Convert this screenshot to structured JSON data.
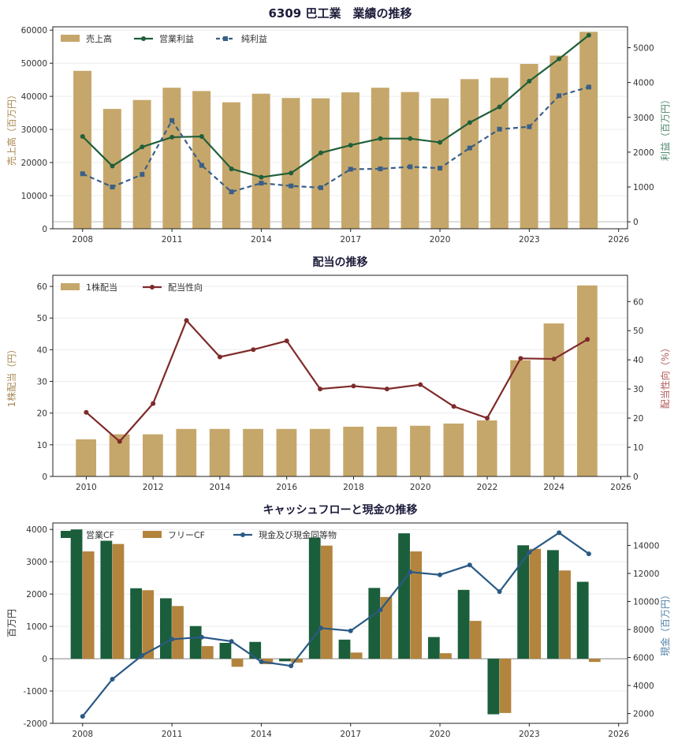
{
  "colors": {
    "bar_gold": "#c6a76b",
    "line_green": "#1f5f3a",
    "line_blue": "#3a5f86",
    "line_red": "#7f2a2a",
    "bar_dark_green": "#1b5e3b",
    "bar_brown": "#b3843e",
    "cash_blue": "#2a5a85",
    "axis_gold_text": "#a88a55",
    "axis_green_text": "#4f8a6f",
    "axis_red_text": "#b05858",
    "axis_blue_text": "#4f7fa8"
  },
  "chart_data": [
    {
      "type": "bar",
      "title": "6309 巴工業　業績の推移",
      "x": [
        2008,
        2009,
        2010,
        2011,
        2012,
        2013,
        2014,
        2015,
        2016,
        2017,
        2018,
        2019,
        2020,
        2021,
        2022,
        2023,
        2024,
        2025
      ],
      "series": [
        {
          "name": "売上高",
          "type": "bar",
          "axis": "left",
          "values": [
            47700,
            36200,
            38900,
            42600,
            41600,
            38200,
            40800,
            39500,
            39400,
            41200,
            42600,
            41300,
            39400,
            45200,
            45600,
            49800,
            52300,
            59500
          ]
        },
        {
          "name": "営業利益",
          "type": "line",
          "axis": "right",
          "values": [
            2450,
            1600,
            2150,
            2430,
            2450,
            1520,
            1280,
            1400,
            1980,
            2200,
            2390,
            2390,
            2280,
            2850,
            3300,
            4040,
            4680,
            5360
          ]
        },
        {
          "name": "純利益",
          "type": "line",
          "axis": "right",
          "values": [
            1380,
            1000,
            1360,
            2910,
            1620,
            860,
            1110,
            1030,
            980,
            1510,
            1520,
            1580,
            1540,
            2120,
            2660,
            2730,
            3620,
            3870
          ]
        }
      ],
      "xlim": [
        2007,
        2026.3
      ],
      "xticks": [
        2008,
        2011,
        2014,
        2017,
        2020,
        2023,
        2026
      ],
      "ylim": [
        0,
        61000
      ],
      "yticks": [
        0,
        10000,
        20000,
        30000,
        40000,
        50000,
        60000
      ],
      "y2lim": [
        -200,
        5600
      ],
      "y2ticks": [
        0,
        1000,
        2000,
        3000,
        4000,
        5000
      ],
      "ylabel": "売上高（百万円）",
      "y2label": "利益（百万円）",
      "legend": "top-left",
      "grid": true
    },
    {
      "type": "bar",
      "title": "配当の推移",
      "x": [
        2010,
        2011,
        2012,
        2013,
        2014,
        2015,
        2016,
        2017,
        2018,
        2019,
        2020,
        2021,
        2022,
        2023,
        2024,
        2025
      ],
      "series": [
        {
          "name": "1株配当",
          "type": "bar",
          "axis": "left",
          "values": [
            11.7,
            13.3,
            13.3,
            15,
            15,
            15,
            15,
            15,
            15.7,
            15.7,
            16,
            16.7,
            17.7,
            36.7,
            48.3,
            60.3
          ]
        },
        {
          "name": "配当性向",
          "type": "line",
          "axis": "right",
          "values": [
            22,
            12,
            25,
            53.5,
            41,
            43.5,
            46.5,
            30,
            31,
            30,
            31.5,
            24,
            20,
            40.5,
            40.3,
            47
          ]
        }
      ],
      "xlim": [
        2009,
        2026.2
      ],
      "xticks": [
        2010,
        2012,
        2014,
        2016,
        2018,
        2020,
        2022,
        2024,
        2026
      ],
      "ylim": [
        0,
        63.5
      ],
      "yticks": [
        0,
        10,
        20,
        30,
        40,
        50,
        60
      ],
      "y2lim": [
        0,
        69
      ],
      "y2ticks": [
        0,
        10,
        20,
        30,
        40,
        50,
        60
      ],
      "ylabel": "1株配当（円）",
      "y2label": "配当性向（%）",
      "legend": "top-left",
      "grid": true
    },
    {
      "type": "bar",
      "title": "キャッシュフローと現金の推移",
      "x": [
        2008,
        2009,
        2010,
        2011,
        2012,
        2013,
        2014,
        2015,
        2016,
        2017,
        2018,
        2019,
        2020,
        2021,
        2022,
        2023,
        2024,
        2025
      ],
      "series": [
        {
          "name": "営業CF",
          "type": "bar",
          "axis": "left",
          "values": [
            4000,
            3650,
            2180,
            1870,
            1010,
            490,
            520,
            -80,
            3750,
            590,
            2190,
            3880,
            670,
            2130,
            -1720,
            3510,
            3360,
            2380
          ]
        },
        {
          "name": "フリーCF",
          "type": "bar",
          "axis": "left",
          "values": [
            3320,
            3550,
            2120,
            1630,
            390,
            -250,
            -170,
            -120,
            3500,
            190,
            1910,
            3320,
            170,
            1170,
            -1680,
            3400,
            2730,
            -100
          ]
        },
        {
          "name": "現金及び現金同等物",
          "type": "line",
          "axis": "right",
          "values": [
            1800,
            4450,
            6150,
            7300,
            7450,
            7150,
            5700,
            5400,
            8100,
            7900,
            9400,
            12100,
            11900,
            12600,
            10700,
            13500,
            14900,
            13400
          ]
        }
      ],
      "xlim": [
        2007,
        2026.3
      ],
      "xticks": [
        2008,
        2011,
        2014,
        2017,
        2020,
        2023,
        2026
      ],
      "ylim": [
        -2000,
        4200
      ],
      "yticks": [
        -2000,
        -1000,
        0,
        1000,
        2000,
        3000,
        4000
      ],
      "y2lim": [
        1300,
        15600
      ],
      "y2ticks": [
        2000,
        4000,
        6000,
        8000,
        10000,
        12000,
        14000
      ],
      "ylabel": "百万円",
      "y2label": "現金（百万円）",
      "legend": "top-left",
      "grid": true
    }
  ]
}
